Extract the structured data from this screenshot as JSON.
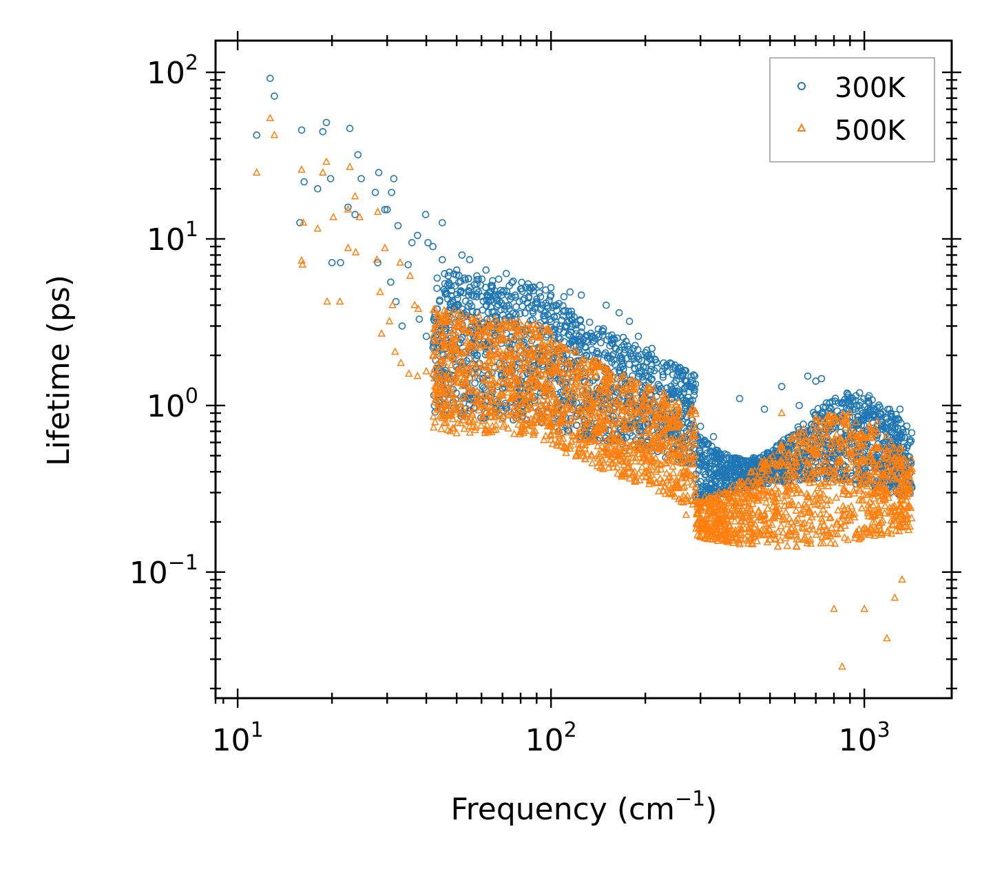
{
  "chart_data": {
    "type": "scatter",
    "title": "",
    "xlabel": "Frequency (cm",
    "xlabel_sup": "−1",
    "xlabel_end": ")",
    "ylabel": "Lifetime (ps)",
    "xscale": "log",
    "yscale": "log",
    "xlim": [
      8.5,
      1900
    ],
    "ylim": [
      0.0175,
      155
    ],
    "x_ticks": [
      {
        "base": "10",
        "exp": "1",
        "value": 10
      },
      {
        "base": "10",
        "exp": "2",
        "value": 100
      },
      {
        "base": "10",
        "exp": "3",
        "value": 1000
      }
    ],
    "y_ticks": [
      {
        "base": "10",
        "exp": "−1",
        "value": 0.1
      },
      {
        "base": "10",
        "exp": "0",
        "value": 1
      },
      {
        "base": "10",
        "exp": "1",
        "value": 10
      },
      {
        "base": "10",
        "exp": "2",
        "value": 100
      }
    ],
    "legend_position": "top-right",
    "series": [
      {
        "name": "300K",
        "marker": "circle",
        "color": "#1f77b4",
        "points": [
          [
            11.5,
            42
          ],
          [
            12.7,
            92
          ],
          [
            13.1,
            72
          ],
          [
            16,
            45
          ],
          [
            16.3,
            22
          ],
          [
            15.8,
            12.5
          ],
          [
            18,
            20
          ],
          [
            18.7,
            44
          ],
          [
            19.2,
            50
          ],
          [
            19.8,
            23
          ],
          [
            22.8,
            46
          ],
          [
            22.5,
            15.5
          ],
          [
            23.7,
            14
          ],
          [
            24.2,
            32
          ],
          [
            24.8,
            23
          ],
          [
            27.5,
            19
          ],
          [
            28.2,
            25
          ],
          [
            29.5,
            15
          ],
          [
            31.5,
            23
          ],
          [
            31,
            19
          ],
          [
            20,
            7.2
          ],
          [
            21.3,
            7.2
          ],
          [
            30,
            15
          ],
          [
            32.5,
            12
          ],
          [
            36,
            9.5
          ],
          [
            37.5,
            10.5
          ],
          [
            39.8,
            14
          ],
          [
            40.5,
            9.5
          ],
          [
            45,
            12.5
          ],
          [
            28,
            7.2
          ],
          [
            30.8,
            5.5
          ],
          [
            32,
            4.2
          ],
          [
            33.5,
            3
          ],
          [
            35,
            7
          ],
          [
            38,
            3.3
          ],
          [
            40,
            2.6
          ],
          [
            42,
            9
          ],
          [
            45,
            7.5
          ],
          [
            47,
            6
          ],
          [
            50,
            6.5
          ],
          [
            52,
            8
          ],
          [
            55,
            7.5
          ],
          [
            58,
            6
          ],
          [
            62,
            6.5
          ],
          [
            65,
            5.2
          ],
          [
            70,
            4.8
          ],
          [
            72,
            6.2
          ],
          [
            75,
            4.5
          ],
          [
            80,
            5
          ],
          [
            85,
            4.5
          ],
          [
            90,
            4.2
          ],
          [
            100,
            4.6
          ],
          [
            110,
            4.5
          ],
          [
            115,
            4.8
          ],
          [
            125,
            4.6
          ],
          [
            150,
            4
          ],
          [
            165,
            3.6
          ],
          [
            178,
            3.2
          ],
          [
            190,
            2.6
          ],
          [
            210,
            2.2
          ],
          [
            240,
            1.8
          ],
          [
            270,
            1.4
          ],
          [
            300,
            0.75
          ],
          [
            330,
            0.65
          ],
          [
            400,
            1.1
          ],
          [
            480,
            0.95
          ],
          [
            545,
            1.3
          ],
          [
            620,
            1
          ],
          [
            660,
            1.5
          ],
          [
            700,
            1.4
          ],
          [
            730,
            1.45
          ],
          [
            780,
            0.9
          ],
          [
            850,
            0.8
          ],
          [
            1000,
            0.7
          ],
          [
            1100,
            0.75
          ],
          [
            1200,
            0.65
          ],
          [
            1300,
            0.95
          ],
          [
            1380,
            0.45
          ]
        ]
      },
      {
        "name": "500K",
        "marker": "triangle",
        "color": "#ff7f0e",
        "points": [
          [
            11.5,
            25
          ],
          [
            12.7,
            53
          ],
          [
            13.1,
            42
          ],
          [
            16,
            26
          ],
          [
            16.2,
            12.5
          ],
          [
            16,
            7.4
          ],
          [
            16.1,
            7
          ],
          [
            18,
            11.5
          ],
          [
            18.7,
            25
          ],
          [
            19.2,
            29
          ],
          [
            20.2,
            13.5
          ],
          [
            19.3,
            4.2
          ],
          [
            21.2,
            4.2
          ],
          [
            22.5,
            15
          ],
          [
            22.8,
            27
          ],
          [
            23.7,
            18
          ],
          [
            24.5,
            13.5
          ],
          [
            22.5,
            8.8
          ],
          [
            23.8,
            8.3
          ],
          [
            28,
            14.5
          ],
          [
            29.5,
            8.8
          ],
          [
            27.8,
            7.5
          ],
          [
            28.5,
            4.8
          ],
          [
            30.5,
            3.2
          ],
          [
            31.2,
            4
          ],
          [
            33,
            7.2
          ],
          [
            35.5,
            6
          ],
          [
            36.7,
            4
          ],
          [
            37.7,
            3.8
          ],
          [
            28.8,
            2.7
          ],
          [
            31.8,
            2.1
          ],
          [
            33.2,
            1.8
          ],
          [
            35.2,
            1.55
          ],
          [
            37.5,
            1.5
          ],
          [
            40,
            1.6
          ],
          [
            42,
            1.55
          ],
          [
            44,
            1.4
          ],
          [
            46,
            1.2
          ],
          [
            48,
            0.9
          ],
          [
            50,
            0.68
          ],
          [
            55,
            0.75
          ],
          [
            65,
            0.75
          ],
          [
            80,
            0.7
          ],
          [
            95,
            0.62
          ],
          [
            115,
            0.55
          ],
          [
            130,
            0.6
          ],
          [
            150,
            0.55
          ],
          [
            165,
            0.5
          ],
          [
            185,
            0.4
          ],
          [
            210,
            0.35
          ],
          [
            240,
            0.3
          ],
          [
            270,
            0.22
          ],
          [
            300,
            0.18
          ],
          [
            340,
            0.18
          ],
          [
            380,
            0.33
          ],
          [
            430,
            0.25
          ],
          [
            480,
            0.3
          ],
          [
            545,
            0.9
          ],
          [
            640,
            0.6
          ],
          [
            700,
            0.85
          ],
          [
            760,
            0.18
          ],
          [
            800,
            0.06
          ],
          [
            850,
            0.027
          ],
          [
            900,
            0.9
          ],
          [
            1000,
            0.06
          ],
          [
            1050,
            0.18
          ],
          [
            1100,
            0.8
          ],
          [
            1180,
            0.04
          ],
          [
            1250,
            0.07
          ],
          [
            1320,
            0.09
          ],
          [
            1390,
            0.38
          ]
        ]
      }
    ]
  }
}
